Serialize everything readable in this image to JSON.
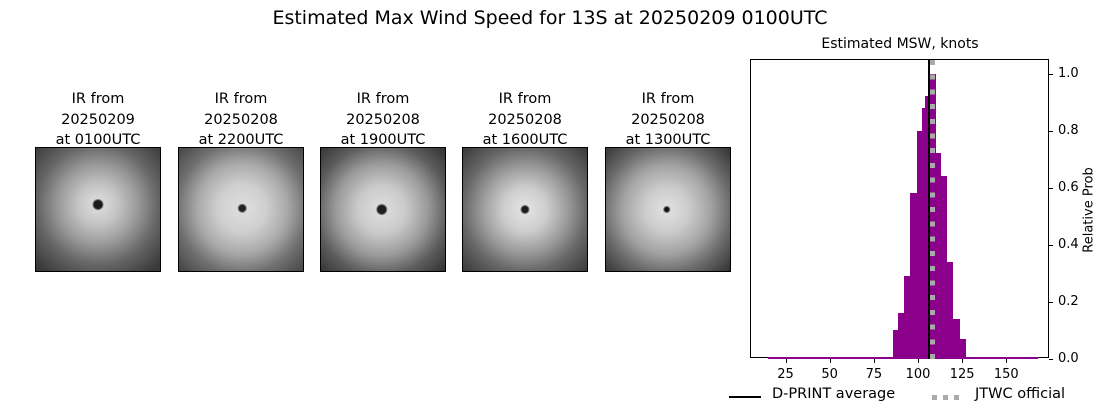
{
  "suptitle": "Estimated Max Wind Speed for 13S at 20250209 0100UTC",
  "ir_panels": [
    {
      "line1": "IR from",
      "line2": "20250209",
      "line3": "at 0100UTC"
    },
    {
      "line1": "IR from",
      "line2": "20250208",
      "line3": "at 2200UTC"
    },
    {
      "line1": "IR from",
      "line2": "20250208",
      "line3": "at 1900UTC"
    },
    {
      "line1": "IR from",
      "line2": "20250208",
      "line3": "at 1600UTC"
    },
    {
      "line1": "IR from",
      "line2": "20250208",
      "line3": "at 1300UTC"
    }
  ],
  "chart_data": {
    "type": "bar",
    "title": "Estimated MSW, knots",
    "xlabel": "",
    "ylabel": "Relative Prob",
    "xlim": [
      5,
      174
    ],
    "ylim": [
      0.0,
      1.05
    ],
    "xticks": [
      25,
      50,
      75,
      100,
      125,
      150
    ],
    "yticks": [
      0.0,
      0.2,
      0.4,
      0.6,
      0.8,
      1.0
    ],
    "ytick_labels": [
      "0.0",
      "0.2",
      "0.4",
      "0.6",
      "0.8",
      "1.0"
    ],
    "yaxis_position": "right",
    "grid": false,
    "bar_color": "#8b008b",
    "bin_width": 3.5,
    "bins": [
      {
        "x0": 86.0,
        "x1": 88.5,
        "value": 0.1
      },
      {
        "x0": 88.5,
        "x1": 91.8,
        "value": 0.16
      },
      {
        "x0": 91.8,
        "x1": 95.7,
        "value": 0.29
      },
      {
        "x0": 95.7,
        "x1": 99.2,
        "value": 0.58
      },
      {
        "x0": 99.2,
        "x1": 102.0,
        "value": 0.8
      },
      {
        "x0": 102.0,
        "x1": 104.2,
        "value": 0.88
      },
      {
        "x0": 104.2,
        "x1": 106.5,
        "value": 0.92
      },
      {
        "x0": 106.5,
        "x1": 110.0,
        "value": 1.0
      },
      {
        "x0": 110.0,
        "x1": 112.8,
        "value": 0.72
      },
      {
        "x0": 112.8,
        "x1": 116.3,
        "value": 0.64
      },
      {
        "x0": 116.3,
        "x1": 119.7,
        "value": 0.34
      },
      {
        "x0": 119.7,
        "x1": 123.7,
        "value": 0.14
      },
      {
        "x0": 123.7,
        "x1": 127.0,
        "value": 0.07
      }
    ],
    "baseline_tail": {
      "x0": 15,
      "x1": 168,
      "value": 0.005
    },
    "vlines": [
      {
        "name": "D-PRINT average",
        "x": 106,
        "color": "#000000",
        "style": "solid"
      },
      {
        "name": "JTWC official",
        "x": 108,
        "color": "#aaaaaa",
        "style": "dotted"
      }
    ],
    "legend": {
      "position": "bottom",
      "entries": [
        {
          "label": "D-PRINT average",
          "color": "#000000",
          "style": "solid"
        },
        {
          "label": "JTWC official",
          "color": "#aaaaaa",
          "style": "dotted"
        }
      ]
    }
  }
}
